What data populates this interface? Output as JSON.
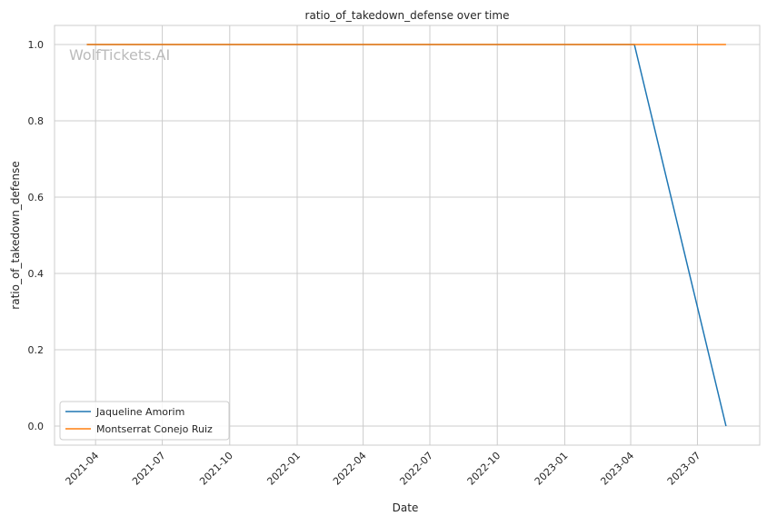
{
  "chart_data": {
    "type": "line",
    "title": "ratio_of_takedown_defense over time",
    "xlabel": "Date",
    "ylabel": "ratio_of_takedown_defense",
    "xlim": [
      "2021-02-04",
      "2023-09-24"
    ],
    "ylim": [
      -0.05,
      1.05
    ],
    "xticks": [
      "2021-04",
      "2021-07",
      "2021-10",
      "2022-01",
      "2022-04",
      "2022-07",
      "2022-10",
      "2023-01",
      "2023-04",
      "2023-07"
    ],
    "yticks": [
      "0.0",
      "0.2",
      "0.4",
      "0.6",
      "0.8",
      "1.0"
    ],
    "grid": true,
    "legend_placement": "lower-left",
    "watermark": "WolfTickets.AI",
    "series": [
      {
        "name": "Jaqueline Amorim",
        "color": "#1f77b4",
        "points": [
          [
            "2021-03-20",
            1.0
          ],
          [
            "2023-04-06",
            1.0
          ],
          [
            "2023-08-09",
            0.0
          ]
        ]
      },
      {
        "name": "Montserrat Conejo Ruiz",
        "color": "#ff7f0e",
        "points": [
          [
            "2021-03-20",
            1.0
          ],
          [
            "2023-08-09",
            1.0
          ]
        ]
      }
    ]
  }
}
